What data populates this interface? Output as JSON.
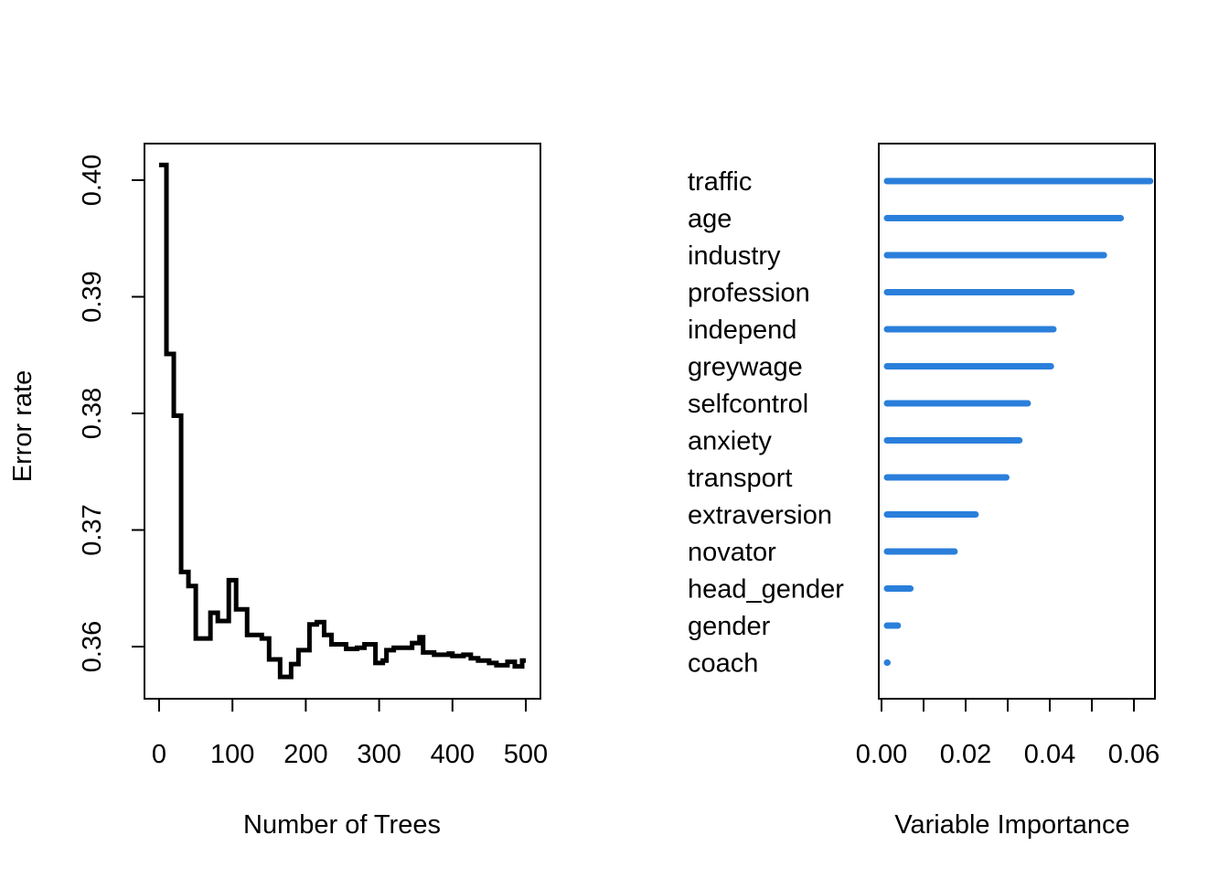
{
  "chart_data": [
    {
      "type": "line",
      "step": true,
      "title": "",
      "xlabel": "Number of Trees",
      "ylabel": "Error rate",
      "xlim": [
        0,
        500
      ],
      "ylim": [
        0.356,
        0.4035
      ],
      "xticks": [
        0,
        100,
        200,
        300,
        400,
        500
      ],
      "xtick_labels": [
        "0",
        "100",
        "200",
        "300",
        "400",
        "500"
      ],
      "yticks": [
        0.36,
        0.37,
        0.38,
        0.39,
        0.4
      ],
      "ytick_labels": [
        "0.36",
        "0.37",
        "0.38",
        "0.39",
        "0.40"
      ],
      "line_color": "#000000",
      "series": [
        {
          "name": "Error rate",
          "x": [
            0,
            10,
            20,
            30,
            40,
            50,
            70,
            80,
            95,
            105,
            120,
            140,
            150,
            165,
            180,
            190,
            205,
            215,
            225,
            235,
            255,
            270,
            280,
            295,
            305,
            310,
            320,
            345,
            355,
            360,
            375,
            395,
            400,
            415,
            425,
            435,
            450,
            460,
            475,
            485,
            495,
            500
          ],
          "y": [
            0.4013,
            0.3851,
            0.3798,
            0.3664,
            0.3652,
            0.3607,
            0.3629,
            0.3622,
            0.3657,
            0.3632,
            0.361,
            0.3607,
            0.3589,
            0.3574,
            0.3585,
            0.3597,
            0.3619,
            0.3621,
            0.361,
            0.3602,
            0.3598,
            0.3599,
            0.3602,
            0.3586,
            0.3588,
            0.3597,
            0.3599,
            0.3603,
            0.3608,
            0.3595,
            0.3593,
            0.3594,
            0.3592,
            0.3593,
            0.359,
            0.3588,
            0.3586,
            0.3584,
            0.3587,
            0.3583,
            0.3588,
            0.3588
          ]
        }
      ]
    },
    {
      "type": "dotchart",
      "title": "",
      "xlabel": "Variable Importance",
      "ylabel": "",
      "xlim": [
        0,
        0.065
      ],
      "xticks": [
        0.0,
        0.01,
        0.02,
        0.03,
        0.04,
        0.05,
        0.06
      ],
      "xtick_labels": [
        "0.00",
        "",
        "0.02",
        "",
        "0.04",
        "",
        "0.06"
      ],
      "color": "#2A7FDB",
      "categories": [
        "traffic",
        "age",
        "industry",
        "profession",
        "independ",
        "greywage",
        "selfcontrol",
        "anxiety",
        "transport",
        "extraversion",
        "novator",
        "head_gender",
        "gender",
        "coach"
      ],
      "values": [
        0.063,
        0.056,
        0.052,
        0.0443,
        0.04,
        0.0394,
        0.0339,
        0.0319,
        0.0288,
        0.0215,
        0.0165,
        0.006,
        0.003,
        0.0005
      ]
    }
  ]
}
